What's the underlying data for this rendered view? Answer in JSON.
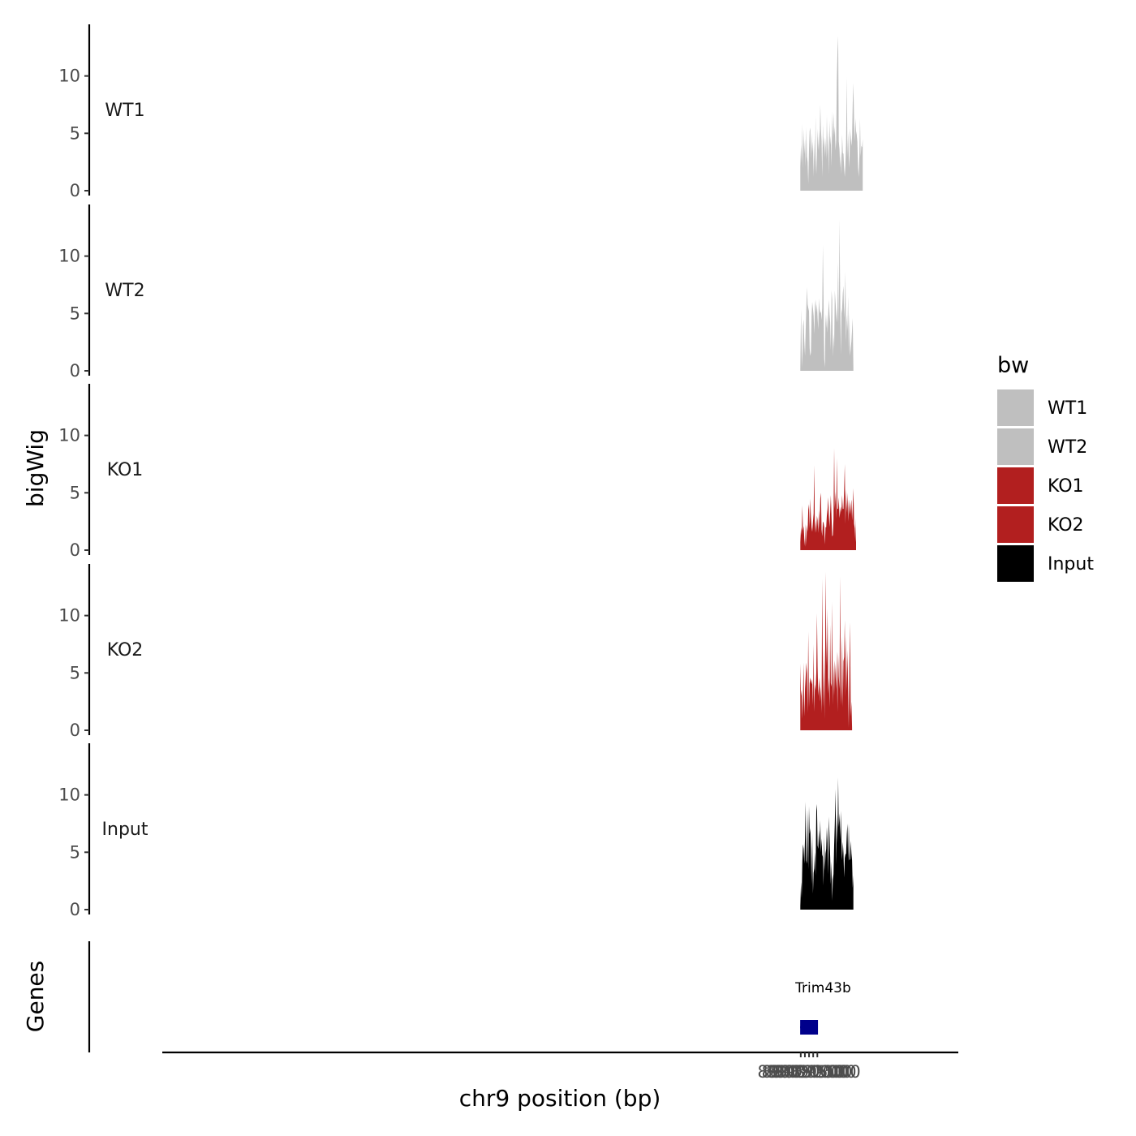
{
  "chart_data": {
    "type": "area",
    "title": "",
    "ylabel": "bigWig",
    "xlabel": "chr9 position (bp)",
    "genes_track_label": "Genes",
    "xlim": [
      88700000,
      89180000
    ],
    "x_ticks": [
      89085000,
      89087500,
      89090000,
      89092500,
      89095000
    ],
    "x_tick_labels": [
      "89085000",
      "89087500",
      "89090000",
      "89092500",
      "89095000"
    ],
    "ylim": [
      0,
      14.5
    ],
    "y_ticks": [
      0,
      5,
      10
    ],
    "y_tick_labels": [
      "0",
      "5",
      "10"
    ],
    "legend": {
      "title": "bw",
      "position": "right",
      "entries": [
        {
          "label": "WT1",
          "color": "#bfbfbf"
        },
        {
          "label": "WT2",
          "color": "#bfbfbf"
        },
        {
          "label": "KO1",
          "color": "#b21f1f"
        },
        {
          "label": "KO2",
          "color": "#b21f1f"
        },
        {
          "label": "Input",
          "color": "#000000"
        }
      ]
    },
    "x_start": 89084750,
    "x_step": 400,
    "series": [
      {
        "name": "WT1",
        "color": "#bfbfbf",
        "values": [
          2.1,
          4.0,
          2.4,
          5.8,
          1.9,
          5.4,
          3.2,
          4.5,
          2.1,
          5.5,
          3.0,
          2.5,
          0.6,
          3.6,
          5.2,
          5.5,
          2.8,
          5.0,
          3.3,
          4.3,
          1.2,
          4.6,
          1.5,
          6.5,
          1.4,
          3.0,
          5.4,
          3.5,
          5.2,
          3.4,
          7.5,
          5.4,
          4.3,
          1.2,
          5.8,
          3.8,
          4.7,
          2.9,
          4.6,
          2.7,
          6.6,
          3.0,
          5.2,
          1.4,
          6.1,
          4.0,
          4.8,
          2.1,
          6.9,
          4.5,
          6.8,
          4.8,
          5.6,
          3.5,
          4.4,
          9.6,
          12.1,
          13.5,
          4.3,
          3.6,
          2.0,
          3.4,
          1.4,
          4.9,
          3.3,
          3.2,
          2.0,
          1.2,
          2.3,
          4.1,
          9.9,
          2.9,
          5.1,
          3.1,
          2.0,
          5.4,
          4.6,
          3.9,
          4.7,
          7.6,
          9.4,
          5.9,
          4.3,
          6.3,
          5.2,
          4.9,
          4.3,
          2.0,
          1.2,
          3.0,
          6.3,
          3.0,
          3.9,
          3.8,
          4.5
        ]
      },
      {
        "name": "WT2",
        "color": "#bfbfbf",
        "values": [
          0.2,
          5.4,
          2.0,
          0.3,
          3.9,
          4.5,
          2.6,
          1.3,
          3.5,
          5.5,
          7.3,
          5.8,
          5.5,
          5.2,
          2.0,
          1.3,
          1.6,
          4.8,
          6.0,
          5.4,
          4.8,
          3.2,
          5.6,
          6.2,
          5.1,
          5.8,
          4.6,
          3.6,
          6.3,
          5.4,
          5.0,
          5.2,
          4.4,
          5.5,
          11.0,
          6.5,
          1.0,
          0.3,
          5.0,
          3.7,
          4.9,
          3.3,
          5.0,
          6.2,
          4.9,
          4.2,
          1.8,
          7.0,
          6.2,
          1.2,
          3.2,
          1.9,
          7.0,
          6.0,
          5.0,
          4.2,
          5.5,
          9.5,
          4.0,
          13.2,
          6.8,
          1.4,
          5.0,
          5.4,
          6.8,
          7.4,
          4.6,
          6.0,
          8.6,
          2.5,
          4.9,
          3.5,
          6.5,
          1.6,
          5.0,
          1.3,
          2.0,
          2.6,
          3.6,
          4.6,
          0.3
        ]
      },
      {
        "name": "KO1",
        "color": "#b21f1f",
        "values": [
          0.7,
          2.0,
          1.3,
          3.9,
          1.7,
          2.1,
          1.0,
          0.3,
          2.3,
          0.4,
          2.2,
          1.6,
          3.5,
          4.0,
          1.9,
          4.5,
          2.9,
          2.0,
          1.6,
          2.5,
          3.2,
          7.4,
          1.5,
          2.6,
          1.5,
          3.0,
          2.6,
          1.5,
          3.5,
          1.9,
          4.5,
          5.0,
          1.8,
          1.2,
          2.5,
          2.4,
          2.0,
          0.5,
          2.0,
          2.0,
          3.0,
          3.6,
          4.6,
          3.0,
          2.0,
          3.3,
          4.8,
          2.8,
          1.2,
          1.3,
          2.7,
          8.9,
          3.6,
          5.1,
          2.7,
          8.0,
          3.6,
          3.6,
          4.6,
          2.8,
          3.3,
          3.8,
          3.3,
          4.8,
          3.6,
          3.6,
          5.3,
          7.5,
          2.3,
          5.3,
          3.3,
          5.0,
          2.5,
          4.4,
          3.8,
          3.1,
          3.9,
          4.4,
          2.6,
          3.7,
          5.4,
          2.3,
          1.9,
          0.7,
          2.8
        ]
      },
      {
        "name": "KO2",
        "color": "#b21f1f",
        "values": [
          5.8,
          3.0,
          3.5,
          1.0,
          3.2,
          5.9,
          1.2,
          3.6,
          4.7,
          5.9,
          5.0,
          1.5,
          8.6,
          2.0,
          4.1,
          4.6,
          4.3,
          4.0,
          4.5,
          2.2,
          7.5,
          1.6,
          4.0,
          3.5,
          5.0,
          10.2,
          5.5,
          3.0,
          3.8,
          4.6,
          2.5,
          3.8,
          1.5,
          13.2,
          5.0,
          2.0,
          7.2,
          1.0,
          13.8,
          8.0,
          5.6,
          10.6,
          3.2,
          4.6,
          2.0,
          9.2,
          4.1,
          3.8,
          11.2,
          2.2,
          5.8,
          3.0,
          6.1,
          4.9,
          3.6,
          6.9,
          1.6,
          6.8,
          4.7,
          3.6,
          13.4,
          2.2,
          3.9,
          8.2,
          2.0,
          6.0,
          6.4,
          9.6,
          2.9,
          8.2,
          3.4,
          7.0,
          3.7,
          0.2,
          5.4,
          9.4,
          1.2,
          2.5,
          0.2
        ]
      },
      {
        "name": "Input",
        "color": "#000000",
        "values": [
          0.3,
          2.4,
          1.0,
          4.2,
          5.7,
          5.3,
          4.0,
          6.2,
          9.4,
          4.3,
          4.0,
          8.7,
          3.5,
          9.0,
          6.6,
          7.1,
          5.2,
          2.2,
          6.7,
          1.4,
          3.2,
          3.6,
          5.0,
          3.0,
          8.6,
          9.2,
          5.6,
          5.3,
          6.9,
          5.6,
          7.8,
          5.0,
          6.2,
          4.8,
          4.6,
          2.1,
          6.4,
          3.4,
          4.9,
          5.3,
          7.2,
          5.8,
          3.1,
          8.1,
          6.4,
          4.6,
          2.2,
          4.2,
          0.8,
          2.6,
          3.1,
          5.6,
          7.5,
          10.5,
          3.9,
          8.3,
          5.8,
          11.5,
          7.2,
          8.4,
          6.1,
          8.6,
          6.0,
          4.3,
          5.9,
          4.9,
          2.8,
          4.5,
          4.8,
          4.9,
          6.6,
          7.5,
          4.2,
          7.5,
          4.3,
          4.4,
          6.0,
          4.9,
          4.3,
          1.9,
          3.0
        ]
      }
    ],
    "gene": {
      "name": "Trim43b",
      "strand": "-",
      "start": 89084650,
      "end": 89092800,
      "color": "#00008b",
      "exons": [
        [
          89084650,
          89085650
        ],
        [
          89087450,
          89087560
        ],
        [
          89089350,
          89089550
        ],
        [
          89090520,
          89090640
        ],
        [
          89091250,
          89091650
        ],
        [
          89092450,
          89092750
        ]
      ]
    }
  }
}
